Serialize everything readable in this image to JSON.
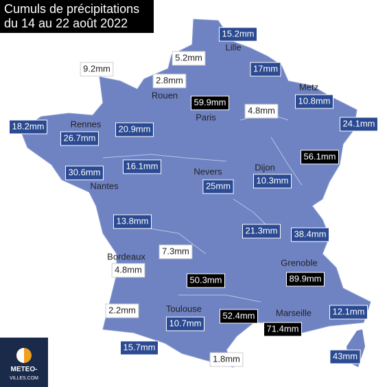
{
  "title": [
    "Cumuls de précipitations",
    "du 14 au 22 août 2022"
  ],
  "cities": [
    "Lille",
    "Rouen",
    "Paris",
    "Metz",
    "Rennes",
    "Nantes",
    "Nevers",
    "Dijon",
    "Bordeaux",
    "Grenoble",
    "Toulouse",
    "Marseille"
  ],
  "labels": [
    {
      "text": "15.2mm",
      "style": "blue"
    },
    {
      "text": "5.2mm",
      "style": "white"
    },
    {
      "text": "17mm",
      "style": "blue"
    },
    {
      "text": "9.2mm",
      "style": "white"
    },
    {
      "text": "2.8mm",
      "style": "white"
    },
    {
      "text": "10.8mm",
      "style": "blue"
    },
    {
      "text": "59.9mm",
      "style": "black"
    },
    {
      "text": "4.8mm",
      "style": "white"
    },
    {
      "text": "18.2mm",
      "style": "blue"
    },
    {
      "text": "20.9mm",
      "style": "blue"
    },
    {
      "text": "26.7mm",
      "style": "blue"
    },
    {
      "text": "24.1mm",
      "style": "blue"
    },
    {
      "text": "56.1mm",
      "style": "black"
    },
    {
      "text": "30.6mm",
      "style": "blue"
    },
    {
      "text": "16.1mm",
      "style": "blue"
    },
    {
      "text": "25mm",
      "style": "blue"
    },
    {
      "text": "10.3mm",
      "style": "blue"
    },
    {
      "text": "13.8mm",
      "style": "blue"
    },
    {
      "text": "21.3mm",
      "style": "blue"
    },
    {
      "text": "38.4mm",
      "style": "blue"
    },
    {
      "text": "7.3mm",
      "style": "white"
    },
    {
      "text": "4.8mm",
      "style": "white"
    },
    {
      "text": "50.3mm",
      "style": "black"
    },
    {
      "text": "89.9mm",
      "style": "black"
    },
    {
      "text": "2.2mm",
      "style": "white"
    },
    {
      "text": "10.7mm",
      "style": "blue"
    },
    {
      "text": "52.4mm",
      "style": "black"
    },
    {
      "text": "12.1mm",
      "style": "blue"
    },
    {
      "text": "71.4mm",
      "style": "black"
    },
    {
      "text": "15.7mm",
      "style": "blue"
    },
    {
      "text": "43mm",
      "style": "blue"
    },
    {
      "text": "1.8mm",
      "style": "white"
    }
  ],
  "logo": [
    "METEO-",
    "VILLES.COM"
  ]
}
